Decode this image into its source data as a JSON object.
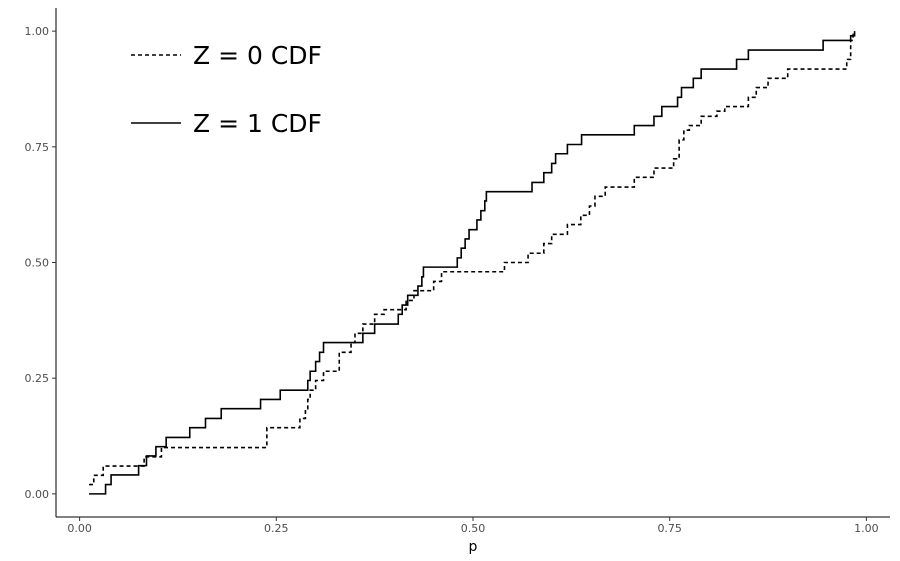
{
  "chart_data": {
    "type": "line",
    "step": true,
    "title": "",
    "xlabel": "p",
    "ylabel": "",
    "xlim": [
      -0.03,
      1.03
    ],
    "ylim": [
      -0.05,
      1.05
    ],
    "xticks": [
      0.0,
      0.25,
      0.5,
      0.75,
      1.0
    ],
    "xtick_labels": [
      "0.00",
      "0.25",
      "0.50",
      "0.75",
      "1.00"
    ],
    "yticks": [
      0.0,
      0.25,
      0.5,
      0.75,
      1.0
    ],
    "ytick_labels": [
      "0.00",
      "0.25",
      "0.50",
      "0.75",
      "1.00"
    ],
    "grid": false,
    "legend_position": "top-left",
    "series": [
      {
        "name": "Z = 0 CDF",
        "line_style": "dashed",
        "color": "#000000",
        "points": [
          [
            0.012,
            0.02
          ],
          [
            0.018,
            0.04
          ],
          [
            0.03,
            0.06
          ],
          [
            0.078,
            0.06
          ],
          [
            0.082,
            0.08
          ],
          [
            0.1,
            0.08
          ],
          [
            0.104,
            0.1
          ],
          [
            0.234,
            0.1
          ],
          [
            0.238,
            0.143
          ],
          [
            0.275,
            0.143
          ],
          [
            0.28,
            0.163
          ],
          [
            0.287,
            0.184
          ],
          [
            0.29,
            0.204
          ],
          [
            0.293,
            0.224
          ],
          [
            0.3,
            0.245
          ],
          [
            0.31,
            0.265
          ],
          [
            0.33,
            0.306
          ],
          [
            0.345,
            0.327
          ],
          [
            0.35,
            0.347
          ],
          [
            0.36,
            0.367
          ],
          [
            0.375,
            0.388
          ],
          [
            0.387,
            0.398
          ],
          [
            0.415,
            0.418
          ],
          [
            0.425,
            0.439
          ],
          [
            0.45,
            0.459
          ],
          [
            0.46,
            0.48
          ],
          [
            0.535,
            0.48
          ],
          [
            0.54,
            0.5
          ],
          [
            0.57,
            0.52
          ],
          [
            0.59,
            0.541
          ],
          [
            0.6,
            0.561
          ],
          [
            0.62,
            0.582
          ],
          [
            0.637,
            0.602
          ],
          [
            0.648,
            0.622
          ],
          [
            0.655,
            0.643
          ],
          [
            0.668,
            0.663
          ],
          [
            0.705,
            0.684
          ],
          [
            0.73,
            0.704
          ],
          [
            0.755,
            0.724
          ],
          [
            0.762,
            0.765
          ],
          [
            0.768,
            0.786
          ],
          [
            0.775,
            0.796
          ],
          [
            0.79,
            0.816
          ],
          [
            0.81,
            0.827
          ],
          [
            0.82,
            0.837
          ],
          [
            0.85,
            0.857
          ],
          [
            0.86,
            0.878
          ],
          [
            0.875,
            0.898
          ],
          [
            0.9,
            0.918
          ],
          [
            0.975,
            0.939
          ],
          [
            0.98,
            0.98
          ],
          [
            0.983,
            1.0
          ]
        ]
      },
      {
        "name": "Z = 1 CDF",
        "line_style": "solid",
        "color": "#000000",
        "points": [
          [
            0.012,
            0.0
          ],
          [
            0.033,
            0.02
          ],
          [
            0.04,
            0.041
          ],
          [
            0.075,
            0.061
          ],
          [
            0.085,
            0.082
          ],
          [
            0.097,
            0.102
          ],
          [
            0.11,
            0.122
          ],
          [
            0.14,
            0.143
          ],
          [
            0.16,
            0.163
          ],
          [
            0.18,
            0.184
          ],
          [
            0.23,
            0.204
          ],
          [
            0.255,
            0.224
          ],
          [
            0.29,
            0.245
          ],
          [
            0.293,
            0.265
          ],
          [
            0.3,
            0.286
          ],
          [
            0.305,
            0.306
          ],
          [
            0.31,
            0.327
          ],
          [
            0.345,
            0.327
          ],
          [
            0.36,
            0.347
          ],
          [
            0.375,
            0.367
          ],
          [
            0.405,
            0.388
          ],
          [
            0.41,
            0.408
          ],
          [
            0.417,
            0.429
          ],
          [
            0.43,
            0.449
          ],
          [
            0.435,
            0.469
          ],
          [
            0.437,
            0.49
          ],
          [
            0.48,
            0.51
          ],
          [
            0.485,
            0.531
          ],
          [
            0.49,
            0.551
          ],
          [
            0.495,
            0.571
          ],
          [
            0.505,
            0.592
          ],
          [
            0.51,
            0.612
          ],
          [
            0.515,
            0.633
          ],
          [
            0.517,
            0.653
          ],
          [
            0.575,
            0.673
          ],
          [
            0.59,
            0.694
          ],
          [
            0.6,
            0.714
          ],
          [
            0.605,
            0.735
          ],
          [
            0.62,
            0.755
          ],
          [
            0.638,
            0.776
          ],
          [
            0.705,
            0.796
          ],
          [
            0.73,
            0.816
          ],
          [
            0.74,
            0.837
          ],
          [
            0.76,
            0.857
          ],
          [
            0.765,
            0.878
          ],
          [
            0.78,
            0.898
          ],
          [
            0.79,
            0.918
          ],
          [
            0.835,
            0.939
          ],
          [
            0.85,
            0.959
          ],
          [
            0.945,
            0.98
          ],
          [
            0.98,
            0.99
          ],
          [
            0.985,
            1.0
          ]
        ]
      }
    ]
  }
}
